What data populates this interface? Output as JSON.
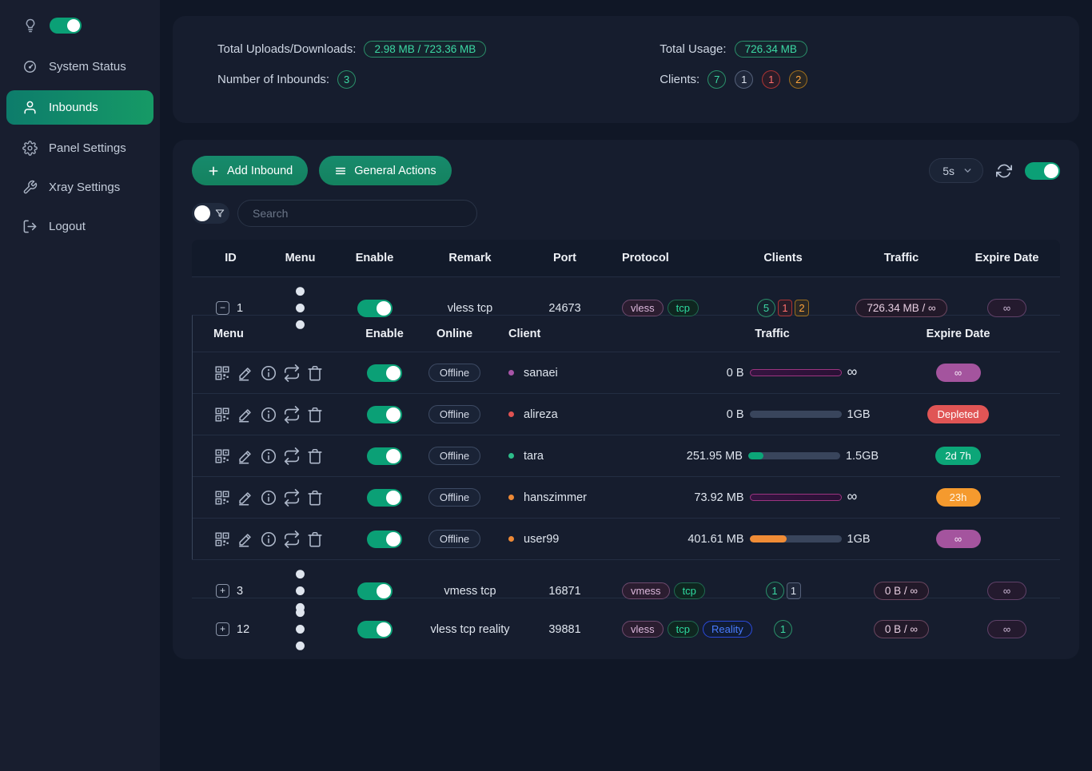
{
  "sidebar": {
    "dark_toggle_on": true,
    "items": [
      {
        "label": "System Status",
        "icon": "dashboard",
        "active": false
      },
      {
        "label": "Inbounds",
        "icon": "user",
        "active": true
      },
      {
        "label": "Panel Settings",
        "icon": "gear",
        "active": false
      },
      {
        "label": "Xray Settings",
        "icon": "wrench",
        "active": false
      },
      {
        "label": "Logout",
        "icon": "logout",
        "active": false
      }
    ]
  },
  "stats": {
    "total_uploads_downloads": {
      "label": "Total Uploads/Downloads:",
      "value": "2.98 MB / 723.36 MB"
    },
    "total_usage": {
      "label": "Total Usage:",
      "value": "726.34 MB"
    },
    "number_of_inbounds": {
      "label": "Number of Inbounds:",
      "value": "3"
    },
    "clients": {
      "label": "Clients:",
      "counts": [
        {
          "value": "7",
          "style": "green"
        },
        {
          "value": "1",
          "style": "gray"
        },
        {
          "value": "1",
          "style": "red"
        },
        {
          "value": "2",
          "style": "orange"
        }
      ]
    }
  },
  "toolbar": {
    "add_inbound": "Add Inbound",
    "general_actions": "General Actions",
    "refresh_interval": "5s",
    "auto_refresh_on": true
  },
  "search": {
    "placeholder": "Search",
    "filter_toggle_on": false
  },
  "table": {
    "headers": [
      "ID",
      "Menu",
      "Enable",
      "Remark",
      "Port",
      "Protocol",
      "Clients",
      "Traffic",
      "Expire Date"
    ],
    "client_headers": [
      "Menu",
      "Enable",
      "Online",
      "Client",
      "Traffic",
      "Expire Date"
    ],
    "inbounds": [
      {
        "id": "1",
        "expanded": true,
        "enabled": true,
        "remark": "vless tcp",
        "port": "24673",
        "protocols": [
          {
            "label": "vless",
            "style": "magenta"
          },
          {
            "label": "tcp",
            "style": "green"
          }
        ],
        "client_counts": [
          {
            "value": "5",
            "style": "green",
            "shape": "circle"
          },
          {
            "value": "1",
            "style": "red",
            "shape": "square"
          },
          {
            "value": "2",
            "style": "orange",
            "shape": "square"
          }
        ],
        "traffic": "726.34 MB / ∞",
        "expire": "∞"
      },
      {
        "id": "3",
        "expanded": false,
        "enabled": true,
        "remark": "vmess tcp",
        "port": "16871",
        "protocols": [
          {
            "label": "vmess",
            "style": "magenta"
          },
          {
            "label": "tcp",
            "style": "green"
          }
        ],
        "client_counts": [
          {
            "value": "1",
            "style": "green",
            "shape": "circle"
          },
          {
            "value": "1",
            "style": "gray",
            "shape": "square"
          }
        ],
        "traffic": "0 B / ∞",
        "expire": "∞"
      },
      {
        "id": "12",
        "expanded": false,
        "enabled": true,
        "remark": "vless tcp reality",
        "port": "39881",
        "protocols": [
          {
            "label": "vless",
            "style": "magenta"
          },
          {
            "label": "tcp",
            "style": "green"
          },
          {
            "label": "Reality",
            "style": "blue"
          }
        ],
        "client_counts": [
          {
            "value": "1",
            "style": "green",
            "shape": "circle"
          }
        ],
        "traffic": "0 B / ∞",
        "expire": "∞"
      }
    ],
    "clients": [
      {
        "name": "sanaei",
        "dot_color": "#a855a8",
        "status": "Offline",
        "enabled": true,
        "traffic_used": "0 B",
        "traffic_limit": "∞",
        "bar": {
          "style": "infinite",
          "pct": 0
        },
        "expire": {
          "label": "∞",
          "style": "purple"
        }
      },
      {
        "name": "alireza",
        "dot_color": "#e05252",
        "status": "Offline",
        "enabled": true,
        "traffic_used": "0 B",
        "traffic_limit": "1GB",
        "bar": {
          "style": "plain",
          "pct": 0
        },
        "expire": {
          "label": "Depleted",
          "style": "red"
        }
      },
      {
        "name": "tara",
        "dot_color": "#2dbd8a",
        "status": "Offline",
        "enabled": true,
        "traffic_used": "251.95 MB",
        "traffic_limit": "1.5GB",
        "bar": {
          "style": "green",
          "pct": 17
        },
        "expire": {
          "label": "2d 7h",
          "style": "green"
        }
      },
      {
        "name": "hanszimmer",
        "dot_color": "#ed8936",
        "status": "Offline",
        "enabled": true,
        "traffic_used": "73.92 MB",
        "traffic_limit": "∞",
        "bar": {
          "style": "infinite",
          "pct": 0
        },
        "expire": {
          "label": "23h",
          "style": "orange"
        }
      },
      {
        "name": "user99",
        "dot_color": "#ed8936",
        "status": "Offline",
        "enabled": true,
        "traffic_used": "401.61 MB",
        "traffic_limit": "1GB",
        "bar": {
          "style": "orange",
          "pct": 40
        },
        "expire": {
          "label": "∞",
          "style": "purple"
        }
      }
    ]
  },
  "colors": {
    "accent_green": "#0ba076",
    "bar_magenta": "#9c3480",
    "badge_red": "#e05555",
    "badge_orange": "#f59a2e",
    "badge_purple": "#a4549e"
  }
}
